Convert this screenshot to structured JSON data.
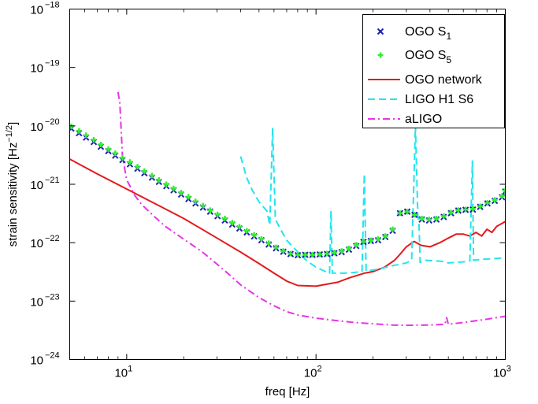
{
  "chart_data": {
    "type": "line",
    "xlabel": "freq [Hz]",
    "ylabel_main": "strain sensitivity [Hz",
    "ylabel_sup": "−1/2",
    "ylabel_end": "]",
    "x_scale": "log",
    "y_scale": "log",
    "xlim": [
      5,
      1000
    ],
    "ylim": [
      1e-24,
      1e-18
    ],
    "grid": false,
    "legend_position": "top-right",
    "x_ticks": [
      {
        "value": 10,
        "base": "10",
        "exp": "1"
      },
      {
        "value": 100,
        "base": "10",
        "exp": "2"
      },
      {
        "value": 1000,
        "base": "10",
        "exp": "3"
      }
    ],
    "y_ticks": [
      {
        "value": 1e-18,
        "base": "10",
        "exp": "−18"
      },
      {
        "value": 1e-19,
        "base": "10",
        "exp": "−19"
      },
      {
        "value": 1e-20,
        "base": "10",
        "exp": "−20"
      },
      {
        "value": 1e-21,
        "base": "10",
        "exp": "−21"
      },
      {
        "value": 1e-22,
        "base": "10",
        "exp": "−22"
      },
      {
        "value": 1e-23,
        "base": "10",
        "exp": "−23"
      },
      {
        "value": 1e-24,
        "base": "10",
        "exp": "−24"
      }
    ],
    "series": [
      {
        "name": "OGO S",
        "name_sub": "1",
        "style": "marker-x",
        "color": "#1f1fb4",
        "points": [
          [
            5.1,
            9e-21
          ],
          [
            5.6,
            7.5e-21
          ],
          [
            6.1,
            6.3e-21
          ],
          [
            6.7,
            5.3e-21
          ],
          [
            7.3,
            4.4e-21
          ],
          [
            8,
            3.7e-21
          ],
          [
            8.7,
            3.1e-21
          ],
          [
            9.5,
            2.6e-21
          ],
          [
            10.4,
            2.2e-21
          ],
          [
            11.4,
            1.85e-21
          ],
          [
            12.4,
            1.55e-21
          ],
          [
            13.6,
            1.3e-21
          ],
          [
            14.8,
            1.1e-21
          ],
          [
            16.2,
            9.3e-22
          ],
          [
            17.7,
            7.9e-22
          ],
          [
            19.4,
            6.7e-22
          ],
          [
            21.2,
            5.6e-22
          ],
          [
            23.1,
            4.7e-22
          ],
          [
            25.3,
            4e-22
          ],
          [
            27.6,
            3.4e-22
          ],
          [
            30.2,
            2.85e-22
          ],
          [
            33,
            2.4e-22
          ],
          [
            36.1,
            2.05e-22
          ],
          [
            39.4,
            1.75e-22
          ],
          [
            43.1,
            1.5e-22
          ],
          [
            47.1,
            1.28e-22
          ],
          [
            51.5,
            1.1e-22
          ],
          [
            56.3,
            9.3e-23
          ],
          [
            61.5,
            8e-23
          ],
          [
            67.2,
            7e-23
          ],
          [
            73.4,
            6.4e-23
          ],
          [
            80.2,
            6.1e-23
          ],
          [
            87.7,
            6.2e-23
          ],
          [
            95.8,
            6.2e-23
          ],
          [
            104.7,
            6.3e-23
          ],
          [
            114.4,
            6.4e-23
          ],
          [
            125,
            6.6e-23
          ],
          [
            136.6,
            6.9e-23
          ],
          [
            149.3,
            7.6e-23
          ],
          [
            163.1,
            8.8e-23
          ],
          [
            178.2,
            1.03e-22
          ],
          [
            194.8,
            1.07e-22
          ],
          [
            212.8,
            1.1e-22
          ],
          [
            232.5,
            1.25e-22
          ],
          [
            254.1,
            1.6e-22
          ],
          [
            277.7,
            3.2e-22
          ],
          [
            303.4,
            3.4e-22
          ],
          [
            331.6,
            3e-22
          ],
          [
            362.3,
            2.5e-22
          ],
          [
            395.9,
            2.4e-22
          ],
          [
            432.6,
            2.5e-22
          ],
          [
            472.8,
            2.75e-22
          ],
          [
            516.6,
            3.2e-22
          ],
          [
            564.5,
            3.55e-22
          ],
          [
            616.9,
            3.65e-22
          ],
          [
            674.1,
            3.7e-22
          ],
          [
            736.6,
            4.1e-22
          ],
          [
            804.9,
            4.7e-22
          ],
          [
            879.5,
            5.2e-22
          ],
          [
            961,
            6e-22
          ],
          [
            1000,
            7.5e-22
          ]
        ]
      },
      {
        "name": "OGO S",
        "name_sub": "5",
        "style": "marker-plus",
        "color": "#33ee33",
        "points": [
          [
            5.1,
            9.8e-21
          ],
          [
            5.6,
            8.2e-21
          ],
          [
            6.1,
            6.9e-21
          ],
          [
            6.7,
            5.8e-21
          ],
          [
            7.3,
            4.8e-21
          ],
          [
            8,
            4e-21
          ],
          [
            8.7,
            3.4e-21
          ],
          [
            9.5,
            2.85e-21
          ],
          [
            10.4,
            2.4e-21
          ],
          [
            11.4,
            2e-21
          ],
          [
            12.4,
            1.68e-21
          ],
          [
            13.6,
            1.41e-21
          ],
          [
            14.8,
            1.19e-21
          ],
          [
            16.2,
            1e-21
          ],
          [
            17.7,
            8.5e-22
          ],
          [
            19.4,
            7.2e-22
          ],
          [
            21.2,
            6.1e-22
          ],
          [
            23.1,
            5.1e-22
          ],
          [
            25.3,
            4.3e-22
          ],
          [
            27.6,
            3.6e-22
          ],
          [
            30.2,
            3.05e-22
          ],
          [
            33,
            2.6e-22
          ],
          [
            36.1,
            2.2e-22
          ],
          [
            39.4,
            1.88e-22
          ],
          [
            43.1,
            1.6e-22
          ],
          [
            47.1,
            1.36e-22
          ],
          [
            51.5,
            1.16e-22
          ],
          [
            56.3,
            9.8e-23
          ],
          [
            61.5,
            8.3e-23
          ],
          [
            67.2,
            7.2e-23
          ],
          [
            73.4,
            6.5e-23
          ],
          [
            80.2,
            6.2e-23
          ],
          [
            87.7,
            6.2e-23
          ],
          [
            95.8,
            6.2e-23
          ],
          [
            104.7,
            6.3e-23
          ],
          [
            114.4,
            6.5e-23
          ],
          [
            125,
            6.8e-23
          ],
          [
            136.6,
            7.2e-23
          ],
          [
            149.3,
            8e-23
          ],
          [
            163.1,
            9.2e-23
          ],
          [
            178.2,
            1.05e-22
          ],
          [
            194.8,
            1.1e-22
          ],
          [
            212.8,
            1.15e-22
          ],
          [
            232.5,
            1.3e-22
          ],
          [
            254.1,
            1.7e-22
          ],
          [
            277.7,
            3.2e-22
          ],
          [
            303.4,
            3.4e-22
          ],
          [
            331.6,
            3e-22
          ],
          [
            362.3,
            2.6e-22
          ],
          [
            395.9,
            2.5e-22
          ],
          [
            432.6,
            2.6e-22
          ],
          [
            472.8,
            2.85e-22
          ],
          [
            516.6,
            3.3e-22
          ],
          [
            564.5,
            3.6e-22
          ],
          [
            616.9,
            3.7e-22
          ],
          [
            674.1,
            3.8e-22
          ],
          [
            736.6,
            4.2e-22
          ],
          [
            804.9,
            4.8e-22
          ],
          [
            879.5,
            5.4e-22
          ],
          [
            961,
            6.3e-22
          ],
          [
            1000,
            7.8e-22
          ]
        ]
      },
      {
        "name": "OGO network",
        "style": "solid",
        "color": "#e31a1c",
        "points": [
          [
            5,
            2.7e-21
          ],
          [
            7,
            1.5e-21
          ],
          [
            10,
            8.3e-22
          ],
          [
            15,
            4.2e-22
          ],
          [
            20,
            2.6e-22
          ],
          [
            30,
            1.2e-22
          ],
          [
            40,
            6.9e-23
          ],
          [
            50,
            4.4e-23
          ],
          [
            60,
            3e-23
          ],
          [
            70,
            2.2e-23
          ],
          [
            80,
            1.85e-23
          ],
          [
            100,
            1.8e-23
          ],
          [
            130,
            2.1e-23
          ],
          [
            150,
            2.5e-23
          ],
          [
            180,
            3e-23
          ],
          [
            200,
            3.2e-23
          ],
          [
            230,
            3.8e-23
          ],
          [
            260,
            5e-23
          ],
          [
            280,
            6.5e-23
          ],
          [
            300,
            8.5e-23
          ],
          [
            330,
            1.05e-22
          ],
          [
            360,
            9e-23
          ],
          [
            400,
            8.5e-23
          ],
          [
            450,
            1e-22
          ],
          [
            500,
            1.2e-22
          ],
          [
            550,
            1.4e-22
          ],
          [
            600,
            1.4e-22
          ],
          [
            650,
            1.3e-22
          ],
          [
            700,
            1.5e-22
          ],
          [
            750,
            1.3e-22
          ],
          [
            800,
            1.7e-22
          ],
          [
            850,
            1.5e-22
          ],
          [
            900,
            1.9e-22
          ],
          [
            1000,
            2.3e-22
          ]
        ]
      },
      {
        "name": "LIGO H1 S6",
        "style": "dashed",
        "color": "#22e5ee",
        "points": [
          [
            40,
            3e-21
          ],
          [
            43,
            1.3e-21
          ],
          [
            46,
            8e-22
          ],
          [
            50,
            5e-22
          ],
          [
            55,
            3.5e-22
          ],
          [
            57,
            2e-22
          ],
          [
            59,
            9e-21
          ],
          [
            61,
            2.5e-22
          ],
          [
            65,
            1.7e-22
          ],
          [
            70,
            1.1e-22
          ],
          [
            80,
            7e-23
          ],
          [
            90,
            4.8e-23
          ],
          [
            100,
            3.8e-23
          ],
          [
            110,
            3.3e-23
          ],
          [
            118,
            3e-23
          ],
          [
            120,
            3.5e-22
          ],
          [
            122,
            3e-23
          ],
          [
            140,
            3e-23
          ],
          [
            160,
            3.1e-23
          ],
          [
            175,
            3.2e-23
          ],
          [
            180,
            1.5e-21
          ],
          [
            184,
            3.3e-23
          ],
          [
            200,
            3.4e-23
          ],
          [
            220,
            3.6e-23
          ],
          [
            250,
            4e-23
          ],
          [
            280,
            4.3e-23
          ],
          [
            300,
            4.5e-23
          ],
          [
            320,
            5e-23
          ],
          [
            335,
            1e-20
          ],
          [
            345,
            3e-22
          ],
          [
            350,
            2.2e-22
          ],
          [
            355,
            4.6e-23
          ],
          [
            380,
            5e-23
          ],
          [
            420,
            4.9e-23
          ],
          [
            460,
            4.8e-23
          ],
          [
            500,
            4.5e-23
          ],
          [
            550,
            4.6e-23
          ],
          [
            600,
            4.7e-23
          ],
          [
            650,
            4.9e-23
          ],
          [
            670,
            2.5e-21
          ],
          [
            680,
            5e-23
          ],
          [
            750,
            5.2e-23
          ],
          [
            850,
            5.3e-23
          ],
          [
            1000,
            5.5e-23
          ]
        ]
      },
      {
        "name": "aLIGO",
        "style": "dashdot",
        "color": "#e833e8",
        "points": [
          [
            9,
            3.8e-20
          ],
          [
            9.2,
            2.5e-20
          ],
          [
            9.5,
            3e-21
          ],
          [
            10,
            1.2e-21
          ],
          [
            11,
            6.5e-22
          ],
          [
            12,
            4.5e-22
          ],
          [
            14,
            2.8e-22
          ],
          [
            16,
            1.9e-22
          ],
          [
            20,
            1.15e-22
          ],
          [
            25,
            7e-23
          ],
          [
            30,
            4.3e-23
          ],
          [
            35,
            2.8e-23
          ],
          [
            40,
            1.9e-23
          ],
          [
            50,
            1.15e-23
          ],
          [
            60,
            8.3e-24
          ],
          [
            70,
            6.6e-24
          ],
          [
            80,
            5.8e-24
          ],
          [
            100,
            5.1e-24
          ],
          [
            130,
            4.6e-24
          ],
          [
            160,
            4.3e-24
          ],
          [
            200,
            4.1e-24
          ],
          [
            250,
            3.9e-24
          ],
          [
            300,
            3.85e-24
          ],
          [
            400,
            3.9e-24
          ],
          [
            480,
            4e-24
          ],
          [
            490,
            5.2e-24
          ],
          [
            500,
            4e-24
          ],
          [
            600,
            4.3e-24
          ],
          [
            700,
            4.6e-24
          ],
          [
            800,
            4.9e-24
          ],
          [
            1000,
            5.5e-24
          ]
        ]
      }
    ]
  }
}
